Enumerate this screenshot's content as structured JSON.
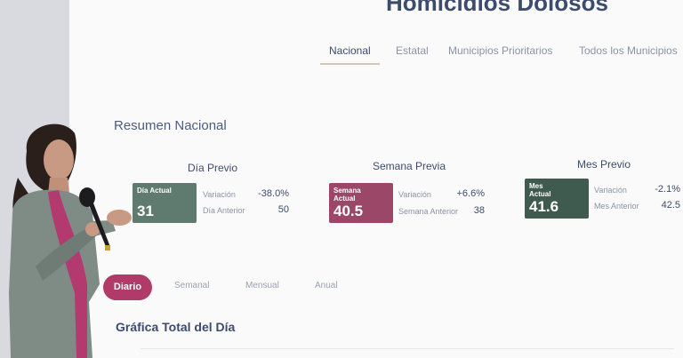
{
  "header": {
    "title": "Homicidios Dolosos"
  },
  "tabs": [
    "Nacional",
    "Estatal",
    "Municipios Prioritarios",
    "Todos los Municipios"
  ],
  "section_title": "Resumen Nacional",
  "cards": [
    {
      "heading": "Día Previo",
      "box_label": "Día Actual",
      "box_value": "31",
      "rows": [
        {
          "label": "Variación",
          "value": "-38.0%"
        },
        {
          "label": "Día Anterior",
          "value": "50"
        }
      ]
    },
    {
      "heading": "Semana Previa",
      "box_label": "Semana Actual",
      "box_value": "40.5",
      "rows": [
        {
          "label": "Variación",
          "value": "+6.6%"
        },
        {
          "label": "Semana Anterior",
          "value": "38"
        }
      ]
    },
    {
      "heading": "Mes Previo",
      "box_label": "Mes Actual",
      "box_value": "41.6",
      "rows": [
        {
          "label": "Variación",
          "value": "-2.1%"
        },
        {
          "label": "Mes Anterior",
          "value": "42.5"
        }
      ]
    }
  ],
  "period_tabs": [
    "Diario",
    "Semanal",
    "Mensual",
    "Anual"
  ],
  "chart_title": "Gráfica Total del Día"
}
